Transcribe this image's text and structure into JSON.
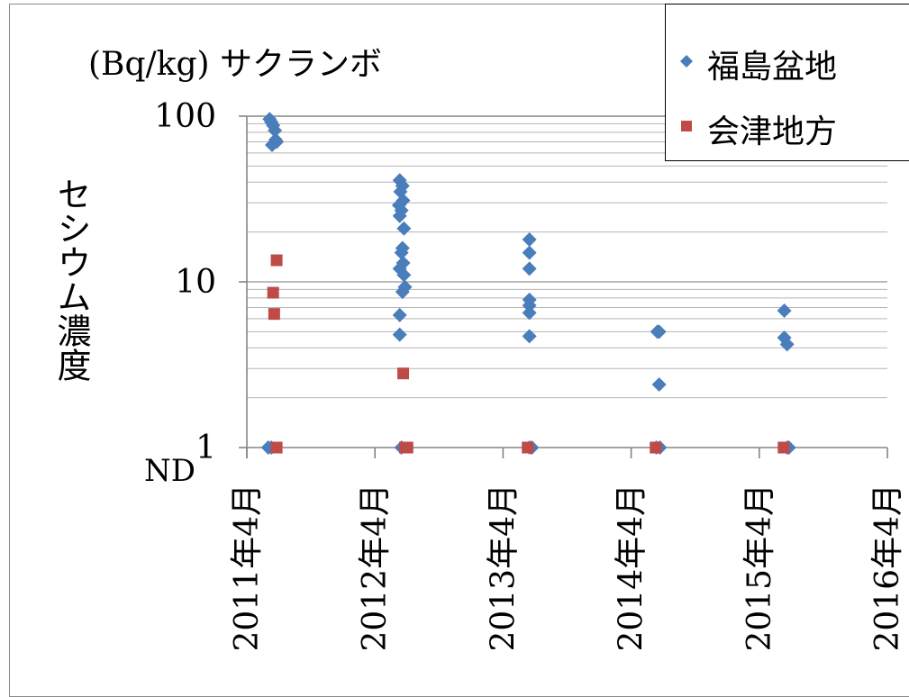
{
  "chart_data": {
    "type": "scatter",
    "title": "(Bq/kg) サクランボ",
    "ylabel": "セシウム濃度",
    "y_scale": "log",
    "ylim": [
      1,
      100
    ],
    "y_ticks": [
      "100",
      "10",
      "1"
    ],
    "nd_label": "ND",
    "x_ticks": [
      "2011年4月",
      "2012年4月",
      "2013年4月",
      "2014年4月",
      "2015年4月",
      "2016年4月"
    ],
    "legend_position": "top-right",
    "grid": true,
    "series": [
      {
        "name": "福島盆地",
        "marker": "diamond",
        "color": "#4a7ebb",
        "points": [
          {
            "x": "2011-06-05",
            "y": 96
          },
          {
            "x": "2011-06-10",
            "y": 92
          },
          {
            "x": "2011-06-15",
            "y": 88
          },
          {
            "x": "2011-06-20",
            "y": 82
          },
          {
            "x": "2011-06-22",
            "y": 72
          },
          {
            "x": "2011-06-25",
            "y": 70
          },
          {
            "x": "2011-06-12",
            "y": 67
          },
          {
            "x": "2011-06-01",
            "y": "ND"
          },
          {
            "x": "2011-06-10",
            "y": "ND"
          },
          {
            "x": "2012-06-10",
            "y": 41
          },
          {
            "x": "2012-06-18",
            "y": 38
          },
          {
            "x": "2012-06-12",
            "y": 35
          },
          {
            "x": "2012-06-20",
            "y": 31
          },
          {
            "x": "2012-06-08",
            "y": 29
          },
          {
            "x": "2012-06-15",
            "y": 27
          },
          {
            "x": "2012-06-10",
            "y": 25
          },
          {
            "x": "2012-06-22",
            "y": 21
          },
          {
            "x": "2012-06-18",
            "y": 16
          },
          {
            "x": "2012-06-15",
            "y": 15
          },
          {
            "x": "2012-06-20",
            "y": 13
          },
          {
            "x": "2012-06-10",
            "y": 12
          },
          {
            "x": "2012-06-22",
            "y": 11
          },
          {
            "x": "2012-06-25",
            "y": 9.3
          },
          {
            "x": "2012-06-18",
            "y": 8.7
          },
          {
            "x": "2012-06-10",
            "y": 6.3
          },
          {
            "x": "2012-06-10",
            "y": 4.8
          },
          {
            "x": "2012-06-15",
            "y": "ND"
          },
          {
            "x": "2013-06-15",
            "y": 18
          },
          {
            "x": "2013-06-15",
            "y": 15
          },
          {
            "x": "2013-06-15",
            "y": 12
          },
          {
            "x": "2013-06-15",
            "y": 7.8
          },
          {
            "x": "2013-06-15",
            "y": 7.2
          },
          {
            "x": "2013-06-15",
            "y": 6.5
          },
          {
            "x": "2013-06-15",
            "y": 4.7
          },
          {
            "x": "2013-06-15",
            "y": "ND"
          },
          {
            "x": "2013-06-22",
            "y": "ND"
          },
          {
            "x": "2014-06-15",
            "y": 5.0
          },
          {
            "x": "2014-06-20",
            "y": 5.0
          },
          {
            "x": "2014-06-20",
            "y": 2.4
          },
          {
            "x": "2014-06-12",
            "y": "ND"
          },
          {
            "x": "2014-06-22",
            "y": "ND"
          },
          {
            "x": "2015-06-12",
            "y": 6.7
          },
          {
            "x": "2015-06-12",
            "y": 4.6
          },
          {
            "x": "2015-06-20",
            "y": 4.2
          },
          {
            "x": "2015-06-20",
            "y": "ND"
          },
          {
            "x": "2015-06-25",
            "y": "ND"
          }
        ]
      },
      {
        "name": "会津地方",
        "marker": "square",
        "color": "#be4b48",
        "points": [
          {
            "x": "2011-06-25",
            "y": 13.5
          },
          {
            "x": "2011-06-15",
            "y": 8.6
          },
          {
            "x": "2011-06-18",
            "y": 6.4
          },
          {
            "x": "2011-06-25",
            "y": "ND"
          },
          {
            "x": "2012-06-20",
            "y": 2.8
          },
          {
            "x": "2012-06-25",
            "y": "ND"
          },
          {
            "x": "2012-07-02",
            "y": "ND"
          },
          {
            "x": "2013-06-10",
            "y": "ND"
          },
          {
            "x": "2014-06-10",
            "y": "ND"
          },
          {
            "x": "2015-06-10",
            "y": "ND"
          }
        ]
      }
    ]
  }
}
